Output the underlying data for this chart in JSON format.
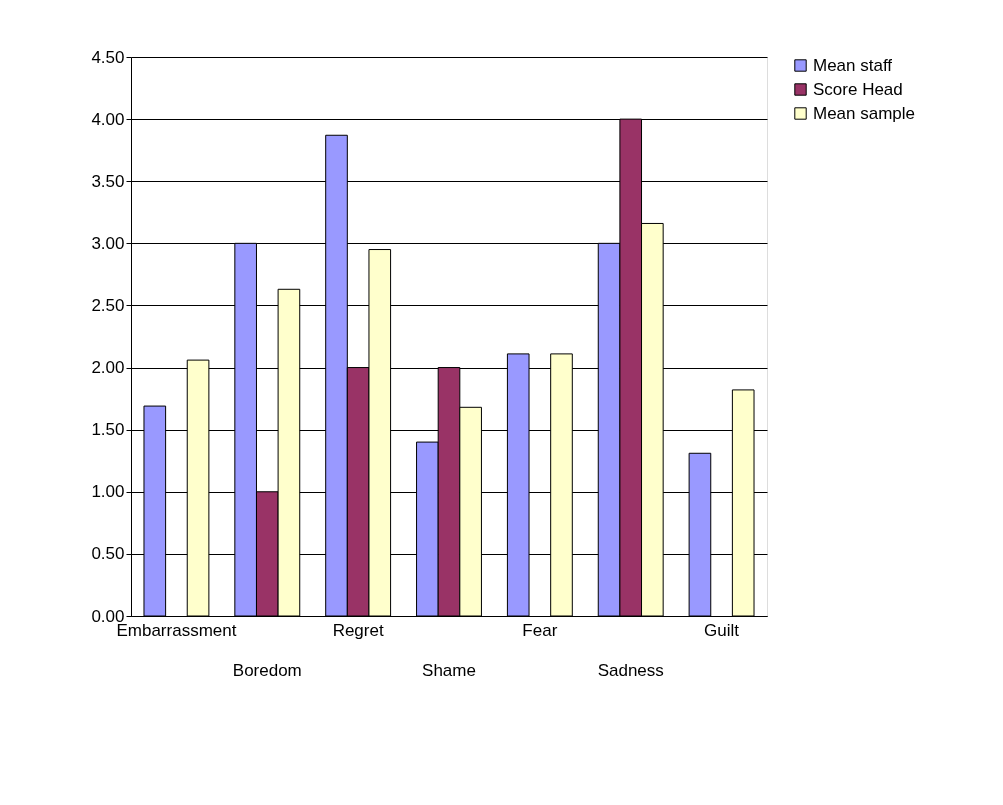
{
  "chart_data": {
    "type": "bar",
    "categories": [
      "Embarrassment",
      "Boredom",
      "Regret",
      "Shame",
      "Fear",
      "Sadness",
      "Guilt"
    ],
    "series": [
      {
        "name": "Mean staff",
        "color": "#9999ff",
        "values": [
          1.69,
          3.0,
          3.87,
          1.4,
          2.11,
          3.0,
          1.31
        ]
      },
      {
        "name": "Score Head",
        "color": "#993366",
        "values": [
          null,
          1.0,
          2.0,
          2.0,
          null,
          4.0,
          null
        ]
      },
      {
        "name": "Mean sample",
        "color": "#ffffcc",
        "values": [
          2.06,
          2.63,
          2.95,
          1.68,
          2.11,
          3.16,
          1.82
        ]
      }
    ],
    "ylim": [
      0,
      4.5
    ],
    "yticks": [
      {
        "value": 0,
        "label": "0.00"
      },
      {
        "value": 0.5,
        "label": "0.50"
      },
      {
        "value": 1,
        "label": "1.00"
      },
      {
        "value": 1.5,
        "label": "1.50"
      },
      {
        "value": 2,
        "label": "2.00"
      },
      {
        "value": 2.5,
        "label": "2.50"
      },
      {
        "value": 3,
        "label": "3.00"
      },
      {
        "value": 3.5,
        "label": "3.50"
      },
      {
        "value": 4,
        "label": "4.00"
      },
      {
        "value": 4.5,
        "label": "4.50"
      }
    ],
    "grid": "y",
    "legend": "right"
  }
}
